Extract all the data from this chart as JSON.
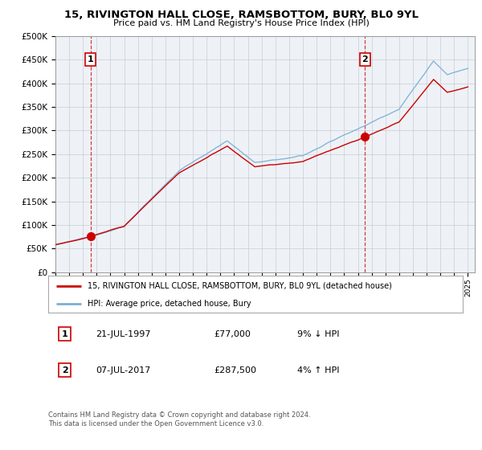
{
  "title": "15, RIVINGTON HALL CLOSE, RAMSBOTTOM, BURY, BL0 9YL",
  "subtitle": "Price paid vs. HM Land Registry's House Price Index (HPI)",
  "ylim": [
    0,
    500000
  ],
  "yticks": [
    0,
    50000,
    100000,
    150000,
    200000,
    250000,
    300000,
    350000,
    400000,
    450000,
    500000
  ],
  "ytick_labels": [
    "£0",
    "£50K",
    "£100K",
    "£150K",
    "£200K",
    "£250K",
    "£300K",
    "£350K",
    "£400K",
    "£450K",
    "£500K"
  ],
  "sale1_year": 1997.55,
  "sale1_price": 77000,
  "sale2_year": 2017.52,
  "sale2_price": 287500,
  "legend_red": "15, RIVINGTON HALL CLOSE, RAMSBOTTOM, BURY, BL0 9YL (detached house)",
  "legend_blue": "HPI: Average price, detached house, Bury",
  "ann1_date": "21-JUL-1997",
  "ann1_price": "£77,000",
  "ann1_hpi": "9% ↓ HPI",
  "ann2_date": "07-JUL-2017",
  "ann2_price": "£287,500",
  "ann2_hpi": "4% ↑ HPI",
  "footer": "Contains HM Land Registry data © Crown copyright and database right 2024.\nThis data is licensed under the Open Government Licence v3.0.",
  "red_color": "#cc0000",
  "blue_color": "#7bafd4",
  "plot_bg_color": "#eef2f7",
  "fig_bg_color": "#ffffff"
}
